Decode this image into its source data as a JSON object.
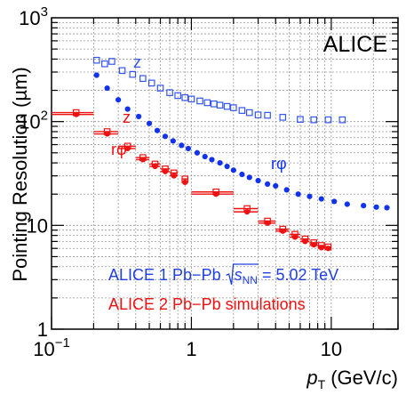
{
  "chart_data": {
    "type": "scatter",
    "xscale": "log",
    "yscale": "log",
    "xlim": [
      0.1,
      30
    ],
    "ylim": [
      1,
      1000
    ],
    "grid": true,
    "ylabel": "Pointing Resolution  (µm)",
    "xlabel_main": "p",
    "xlabel_sub": "T",
    "xlabel_unit": "(GeV/c)",
    "xticks": [
      {
        "value": 0.1,
        "base": "10",
        "exp": "−1"
      },
      {
        "value": 1,
        "base": "1",
        "exp": ""
      },
      {
        "value": 10,
        "base": "10",
        "exp": ""
      }
    ],
    "yticks": [
      {
        "value": 1,
        "base": "1",
        "exp": ""
      },
      {
        "value": 10,
        "base": "10",
        "exp": ""
      },
      {
        "value": 100,
        "base": "10",
        "exp": "2"
      },
      {
        "value": 1000,
        "base": "10",
        "exp": "3"
      }
    ],
    "experiment_label": "ALICE",
    "legend": {
      "line1_prefix": "ALICE 1 Pb−Pb ",
      "line1_sqrt_s": "s",
      "line1_sqrt_sub": "NN",
      "line1_suffix": " = 5.02 TeV",
      "line1_color": "#1f3fe0",
      "line2": "ALICE 2 Pb−Pb simulations",
      "line2_color": "#ee1111"
    },
    "series": [
      {
        "label": "z",
        "color": "#3355ee",
        "marker": "open-square",
        "points": [
          [
            0.21,
            390
          ],
          [
            0.24,
            360
          ],
          [
            0.27,
            380
          ],
          [
            0.32,
            310
          ],
          [
            0.38,
            285
          ],
          [
            0.45,
            260
          ],
          [
            0.52,
            235
          ],
          [
            0.6,
            210
          ],
          [
            0.7,
            190
          ],
          [
            0.8,
            178
          ],
          [
            0.9,
            170
          ],
          [
            1.0,
            165
          ],
          [
            1.15,
            158
          ],
          [
            1.3,
            152
          ],
          [
            1.45,
            148
          ],
          [
            1.6,
            144
          ],
          [
            1.8,
            140
          ],
          [
            2.0,
            136
          ],
          [
            2.3,
            128
          ],
          [
            2.6,
            122
          ],
          [
            3.0,
            116
          ],
          [
            3.5,
            115
          ],
          [
            4.5,
            110
          ],
          [
            6.0,
            105
          ],
          [
            7.5,
            104
          ],
          [
            9.5,
            104
          ],
          [
            12.0,
            104
          ]
        ]
      },
      {
        "label": "rφ",
        "color": "#1133ee",
        "marker": "filled-circle",
        "points": [
          [
            0.21,
            280
          ],
          [
            0.25,
            210
          ],
          [
            0.3,
            162
          ],
          [
            0.35,
            132
          ],
          [
            0.42,
            112
          ],
          [
            0.5,
            96
          ],
          [
            0.57,
            82
          ],
          [
            0.65,
            72
          ],
          [
            0.74,
            65
          ],
          [
            0.85,
            59
          ],
          [
            0.95,
            55
          ],
          [
            1.1,
            50
          ],
          [
            1.25,
            46
          ],
          [
            1.4,
            43
          ],
          [
            1.6,
            40
          ],
          [
            1.8,
            37
          ],
          [
            2.0,
            34
          ],
          [
            2.3,
            31
          ],
          [
            2.6,
            29
          ],
          [
            3.0,
            27
          ],
          [
            3.5,
            25
          ],
          [
            4.0,
            24
          ],
          [
            4.8,
            22
          ],
          [
            5.8,
            20
          ],
          [
            7.0,
            19
          ],
          [
            8.5,
            18
          ],
          [
            10.5,
            17
          ],
          [
            13.0,
            16
          ],
          [
            17.0,
            15.5
          ],
          [
            21.0,
            15
          ],
          [
            25.0,
            14.8
          ]
        ]
      },
      {
        "label": "z",
        "color": "#ee1111",
        "marker": "open-square",
        "xerr": true,
        "points": [
          [
            0.15,
            122
          ],
          [
            0.25,
            80
          ],
          [
            0.35,
            58
          ],
          [
            0.45,
            45
          ],
          [
            0.55,
            39
          ],
          [
            0.65,
            35
          ],
          [
            0.75,
            32
          ],
          [
            0.9,
            28
          ],
          [
            1.5,
            21
          ],
          [
            2.5,
            14.5
          ],
          [
            3.5,
            11
          ],
          [
            4.5,
            9.2
          ],
          [
            5.5,
            8.2
          ],
          [
            6.5,
            7.4
          ],
          [
            7.5,
            6.8
          ],
          [
            8.5,
            6.4
          ],
          [
            9.5,
            6.2
          ]
        ]
      },
      {
        "label": "rφ",
        "color": "#ee1111",
        "marker": "filled-circle",
        "xerr": true,
        "points": [
          [
            0.15,
            117
          ],
          [
            0.25,
            76
          ],
          [
            0.35,
            55
          ],
          [
            0.45,
            43
          ],
          [
            0.55,
            37
          ],
          [
            0.65,
            33
          ],
          [
            0.75,
            30
          ],
          [
            0.9,
            26
          ],
          [
            1.5,
            20
          ],
          [
            2.5,
            13.5
          ],
          [
            3.5,
            10.5
          ],
          [
            4.5,
            8.8
          ],
          [
            5.5,
            7.7
          ],
          [
            6.5,
            7.0
          ],
          [
            7.5,
            6.5
          ],
          [
            8.5,
            6.1
          ],
          [
            9.5,
            6.0
          ]
        ]
      }
    ]
  }
}
